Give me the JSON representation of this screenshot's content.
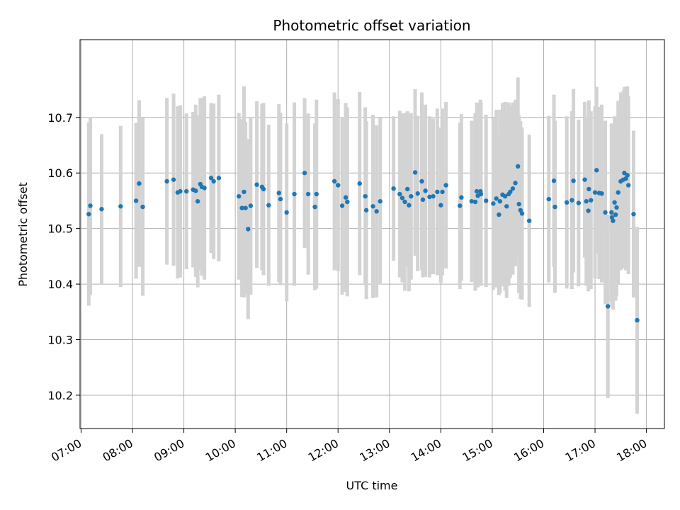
{
  "chart_data": {
    "type": "scatter",
    "title": "Photometric offset variation",
    "xlabel": "UTC time",
    "ylabel": "Photometric offset",
    "x_unit": "hours (UTC)",
    "xlim": [
      6.98,
      18.35
    ],
    "ylim": [
      10.14,
      10.84
    ],
    "x_ticks": [
      7,
      8,
      9,
      10,
      11,
      12,
      13,
      14,
      15,
      16,
      17,
      18
    ],
    "x_tick_labels": [
      "07:00",
      "08:00",
      "09:00",
      "10:00",
      "11:00",
      "12:00",
      "13:00",
      "14:00",
      "15:00",
      "16:00",
      "17:00",
      "18:00"
    ],
    "y_ticks": [
      10.2,
      10.3,
      10.4,
      10.5,
      10.6,
      10.7
    ],
    "y_tick_labels": [
      "10.2",
      "10.3",
      "10.4",
      "10.5",
      "10.6",
      "10.7"
    ],
    "grid": true,
    "colors": {
      "point": "#1f77b4",
      "errorbar": "#d3d3d3",
      "grid": "#b0b0b0"
    },
    "series": [
      {
        "points": [
          [
            7.15,
            10.526,
            0.165
          ],
          [
            7.18,
            10.541,
            0.16
          ],
          [
            7.4,
            10.535,
            0.135
          ],
          [
            7.77,
            10.54,
            0.145
          ],
          [
            8.07,
            10.55,
            0.14
          ],
          [
            8.13,
            10.581,
            0.15
          ],
          [
            8.2,
            10.539,
            0.16
          ],
          [
            8.67,
            10.585,
            0.15
          ],
          [
            8.8,
            10.588,
            0.155
          ],
          [
            8.88,
            10.565,
            0.155
          ],
          [
            8.93,
            10.567,
            0.155
          ],
          [
            9.05,
            10.567,
            0.14
          ],
          [
            9.18,
            10.57,
            0.14
          ],
          [
            9.23,
            10.568,
            0.155
          ],
          [
            9.27,
            10.549,
            0.155
          ],
          [
            9.32,
            10.58,
            0.155
          ],
          [
            9.35,
            10.575,
            0.16
          ],
          [
            9.4,
            10.573,
            0.165
          ],
          [
            9.53,
            10.591,
            0.135
          ],
          [
            9.58,
            10.585,
            0.14
          ],
          [
            9.68,
            10.591,
            0.15
          ],
          [
            10.07,
            10.558,
            0.15
          ],
          [
            10.13,
            10.537,
            0.16
          ],
          [
            10.17,
            10.566,
            0.19
          ],
          [
            10.2,
            10.537,
            0.155
          ],
          [
            10.25,
            10.499,
            0.162
          ],
          [
            10.3,
            10.541,
            0.16
          ],
          [
            10.42,
            10.579,
            0.15
          ],
          [
            10.52,
            10.575,
            0.15
          ],
          [
            10.55,
            10.571,
            0.155
          ],
          [
            10.65,
            10.542,
            0.145
          ],
          [
            10.85,
            10.564,
            0.16
          ],
          [
            10.88,
            10.553,
            0.155
          ],
          [
            11.0,
            10.529,
            0.16
          ],
          [
            11.15,
            10.562,
            0.165
          ],
          [
            11.35,
            10.6,
            0.135
          ],
          [
            11.42,
            10.562,
            0.145
          ],
          [
            11.55,
            10.539,
            0.15
          ],
          [
            11.58,
            10.562,
            0.17
          ],
          [
            11.93,
            10.585,
            0.16
          ],
          [
            12.0,
            10.578,
            0.155
          ],
          [
            12.08,
            10.541,
            0.16
          ],
          [
            12.15,
            10.556,
            0.17
          ],
          [
            12.18,
            10.548,
            0.17
          ],
          [
            12.42,
            10.581,
            0.165
          ],
          [
            12.53,
            10.558,
            0.16
          ],
          [
            12.55,
            10.533,
            0.16
          ],
          [
            12.68,
            10.54,
            0.165
          ],
          [
            12.75,
            10.531,
            0.155
          ],
          [
            12.82,
            10.549,
            0.15
          ],
          [
            13.08,
            10.572,
            0.13
          ],
          [
            13.2,
            10.562,
            0.15
          ],
          [
            13.25,
            10.555,
            0.152
          ],
          [
            13.3,
            10.548,
            0.16
          ],
          [
            13.35,
            10.571,
            0.14
          ],
          [
            13.38,
            10.542,
            0.155
          ],
          [
            13.42,
            10.558,
            0.15
          ],
          [
            13.5,
            10.601,
            0.15
          ],
          [
            13.55,
            10.563,
            0.14
          ],
          [
            13.63,
            10.585,
            0.16
          ],
          [
            13.65,
            10.552,
            0.14
          ],
          [
            13.7,
            10.568,
            0.155
          ],
          [
            13.78,
            10.557,
            0.145
          ],
          [
            13.85,
            10.558,
            0.14
          ],
          [
            13.93,
            10.566,
            0.15
          ],
          [
            14.0,
            10.542,
            0.14
          ],
          [
            14.03,
            10.566,
            0.15
          ],
          [
            14.1,
            10.578,
            0.15
          ],
          [
            14.37,
            10.541,
            0.15
          ],
          [
            14.4,
            10.556,
            0.15
          ],
          [
            14.6,
            10.549,
            0.145
          ],
          [
            14.67,
            10.548,
            0.16
          ],
          [
            14.7,
            10.567,
            0.16
          ],
          [
            14.72,
            10.559,
            0.165
          ],
          [
            14.77,
            10.567,
            0.165
          ],
          [
            14.78,
            10.562,
            0.165
          ],
          [
            14.88,
            10.55,
            0.155
          ],
          [
            15.02,
            10.545,
            0.155
          ],
          [
            15.08,
            10.554,
            0.16
          ],
          [
            15.13,
            10.525,
            0.145
          ],
          [
            15.15,
            10.549,
            0.165
          ],
          [
            15.2,
            10.561,
            0.165
          ],
          [
            15.25,
            10.558,
            0.17
          ],
          [
            15.28,
            10.54,
            0.165
          ],
          [
            15.32,
            10.562,
            0.165
          ],
          [
            15.35,
            10.566,
            0.155
          ],
          [
            15.4,
            10.572,
            0.155
          ],
          [
            15.45,
            10.582,
            0.15
          ],
          [
            15.5,
            10.612,
            0.16
          ],
          [
            15.52,
            10.544,
            0.16
          ],
          [
            15.55,
            10.533,
            0.16
          ],
          [
            15.58,
            10.527,
            0.155
          ],
          [
            15.72,
            10.514,
            0.155
          ],
          [
            16.1,
            10.553,
            0.15
          ],
          [
            16.2,
            10.586,
            0.155
          ],
          [
            16.22,
            10.539,
            0.155
          ],
          [
            16.45,
            10.547,
            0.155
          ],
          [
            16.55,
            10.551,
            0.16
          ],
          [
            16.58,
            10.586,
            0.165
          ],
          [
            16.68,
            10.546,
            0.15
          ],
          [
            16.8,
            10.588,
            0.14
          ],
          [
            16.83,
            10.549,
            0.152
          ],
          [
            16.87,
            10.532,
            0.145
          ],
          [
            16.88,
            10.571,
            0.16
          ],
          [
            16.92,
            10.551,
            0.16
          ],
          [
            17.0,
            10.565,
            0.155
          ],
          [
            17.03,
            10.605,
            0.15
          ],
          [
            17.08,
            10.564,
            0.155
          ],
          [
            17.13,
            10.563,
            0.16
          ],
          [
            17.2,
            10.529,
            0.165
          ],
          [
            17.25,
            10.36,
            0.165
          ],
          [
            17.32,
            10.529,
            0.16
          ],
          [
            17.33,
            10.52,
            0.16
          ],
          [
            17.35,
            10.514,
            0.16
          ],
          [
            17.38,
            10.547,
            0.155
          ],
          [
            17.4,
            10.525,
            0.155
          ],
          [
            17.42,
            10.538,
            0.16
          ],
          [
            17.45,
            10.565,
            0.165
          ],
          [
            17.5,
            10.585,
            0.16
          ],
          [
            17.55,
            10.588,
            0.16
          ],
          [
            17.57,
            10.6,
            0.155
          ],
          [
            17.6,
            10.59,
            0.165
          ],
          [
            17.63,
            10.596,
            0.16
          ],
          [
            17.65,
            10.578,
            0.16
          ],
          [
            17.75,
            10.526,
            0.15
          ],
          [
            17.82,
            10.335,
            0.168
          ]
        ]
      }
    ]
  }
}
